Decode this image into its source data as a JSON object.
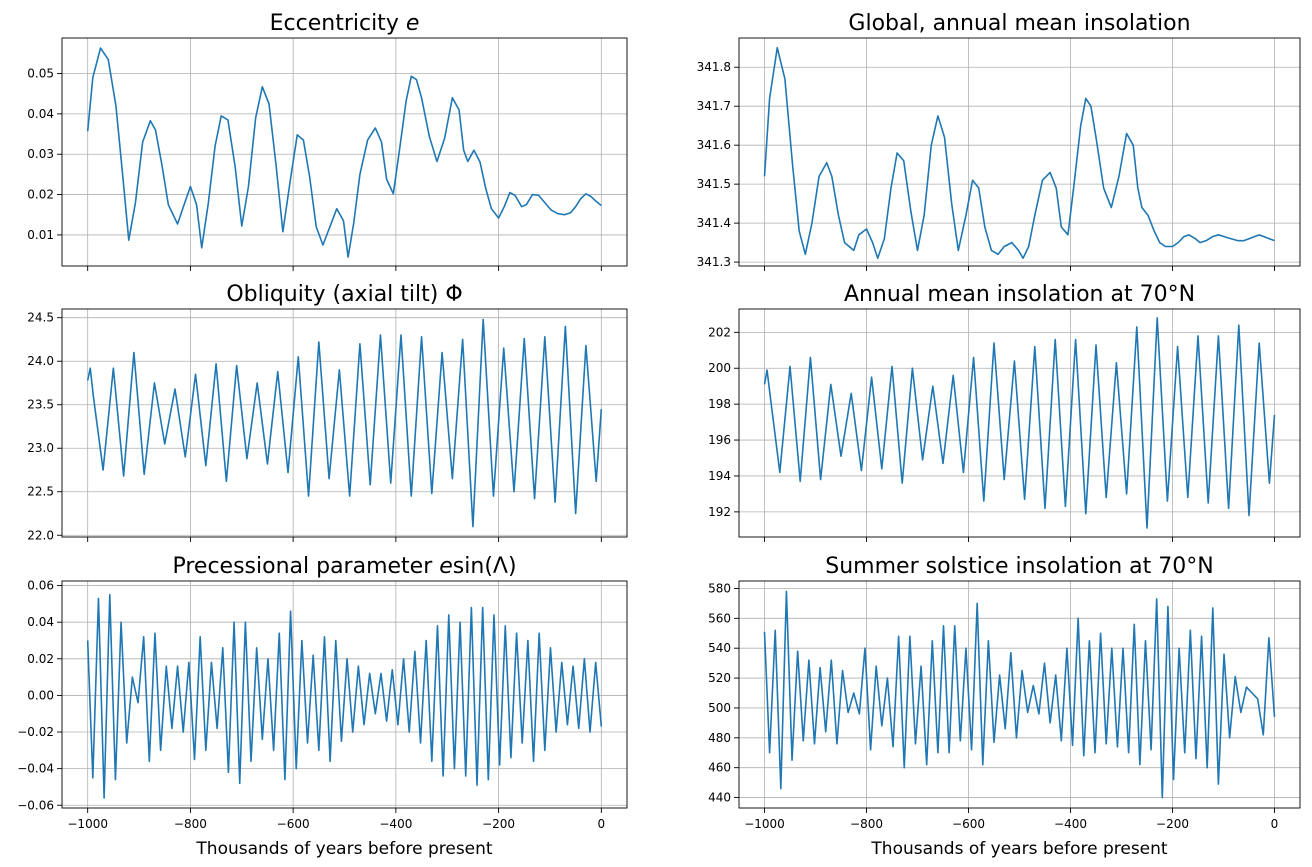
{
  "figure": {
    "background": "#ffffff",
    "line_color": "#1f77b4",
    "grid_color": "#b0b0b0"
  },
  "chart_data": [
    {
      "type": "line",
      "title": "Eccentricity e",
      "title_main": "Eccentricity ",
      "title_var": "e",
      "xlabel": "",
      "ylabel": "",
      "xlim": [
        -1050,
        50
      ],
      "ylim": [
        0.0023,
        0.0588
      ],
      "grid": true,
      "xticks": [
        -1000,
        -800,
        -600,
        -400,
        -200,
        0
      ],
      "yticks": [
        0.01,
        0.02,
        0.03,
        0.04,
        0.05
      ],
      "ytick_labels": [
        "0.01",
        "0.02",
        "0.03",
        "0.04",
        "0.05"
      ],
      "show_xtick_labels": false,
      "x": [
        -1000,
        -990,
        -975,
        -960,
        -945,
        -932,
        -920,
        -907,
        -893,
        -878,
        -868,
        -855,
        -843,
        -825,
        -815,
        -800,
        -788,
        -778,
        -765,
        -752,
        -740,
        -727,
        -713,
        -700,
        -687,
        -673,
        -660,
        -647,
        -633,
        -620,
        -605,
        -592,
        -580,
        -568,
        -555,
        -542,
        -530,
        -515,
        -502,
        -493,
        -482,
        -470,
        -455,
        -440,
        -428,
        -418,
        -405,
        -393,
        -380,
        -370,
        -360,
        -350,
        -335,
        -320,
        -305,
        -290,
        -277,
        -268,
        -260,
        -248,
        -236,
        -225,
        -214,
        -200,
        -189,
        -178,
        -168,
        -155,
        -146,
        -134,
        -122,
        -110,
        -98,
        -85,
        -72,
        -60,
        -50,
        -40,
        -30,
        -20,
        -10,
        0
      ],
      "y": [
        0.0357,
        0.049,
        0.0563,
        0.0535,
        0.042,
        0.025,
        0.0087,
        0.018,
        0.033,
        0.0383,
        0.036,
        0.027,
        0.0175,
        0.0127,
        0.0165,
        0.022,
        0.0175,
        0.0068,
        0.018,
        0.032,
        0.0395,
        0.0385,
        0.027,
        0.0122,
        0.022,
        0.039,
        0.0467,
        0.0425,
        0.027,
        0.0108,
        0.024,
        0.0348,
        0.0335,
        0.0245,
        0.012,
        0.0075,
        0.0115,
        0.0165,
        0.0135,
        0.0045,
        0.013,
        0.025,
        0.0335,
        0.0365,
        0.033,
        0.0238,
        0.0202,
        0.031,
        0.0432,
        0.0493,
        0.0485,
        0.044,
        0.0345,
        0.0282,
        0.034,
        0.044,
        0.041,
        0.031,
        0.0282,
        0.031,
        0.028,
        0.0215,
        0.0165,
        0.0142,
        0.017,
        0.0205,
        0.0198,
        0.017,
        0.0175,
        0.02,
        0.0198,
        0.018,
        0.0162,
        0.0153,
        0.015,
        0.0155,
        0.017,
        0.019,
        0.0202,
        0.0195,
        0.0183,
        0.0173
      ]
    },
    {
      "type": "line",
      "title": "Global, annual mean insolation",
      "xlabel": "",
      "ylabel": "",
      "xlim": [
        -1050,
        50
      ],
      "ylim": [
        341.29,
        341.875
      ],
      "grid": true,
      "xticks": [
        -1000,
        -800,
        -600,
        -400,
        -200,
        0
      ],
      "yticks": [
        341.3,
        341.4,
        341.5,
        341.6,
        341.7,
        341.8
      ],
      "ytick_labels": [
        "341.3",
        "341.4",
        "341.5",
        "341.6",
        "341.7",
        "341.8"
      ],
      "show_xtick_labels": false,
      "x": [
        -1000,
        -990,
        -975,
        -960,
        -945,
        -932,
        -920,
        -907,
        -893,
        -878,
        -868,
        -855,
        -843,
        -825,
        -815,
        -800,
        -788,
        -778,
        -765,
        -752,
        -740,
        -727,
        -713,
        -700,
        -687,
        -673,
        -660,
        -647,
        -633,
        -620,
        -605,
        -592,
        -580,
        -568,
        -555,
        -542,
        -530,
        -515,
        -502,
        -493,
        -482,
        -470,
        -455,
        -440,
        -428,
        -418,
        -405,
        -393,
        -380,
        -370,
        -360,
        -350,
        -335,
        -320,
        -305,
        -290,
        -277,
        -268,
        -260,
        -248,
        -236,
        -225,
        -214,
        -200,
        -189,
        -178,
        -168,
        -155,
        -146,
        -134,
        -122,
        -110,
        -98,
        -85,
        -72,
        -60,
        -50,
        -40,
        -30,
        -20,
        -10,
        0
      ],
      "y": [
        341.52,
        341.72,
        341.85,
        341.77,
        341.55,
        341.38,
        341.32,
        341.4,
        341.52,
        341.555,
        341.52,
        341.42,
        341.35,
        341.33,
        341.37,
        341.385,
        341.35,
        341.31,
        341.36,
        341.49,
        341.58,
        341.56,
        341.43,
        341.33,
        341.42,
        341.6,
        341.675,
        341.62,
        341.45,
        341.33,
        341.42,
        341.51,
        341.49,
        341.39,
        341.33,
        341.32,
        341.34,
        341.35,
        341.33,
        341.31,
        341.34,
        341.42,
        341.51,
        341.53,
        341.49,
        341.39,
        341.37,
        341.5,
        341.65,
        341.72,
        341.7,
        341.62,
        341.49,
        341.44,
        341.52,
        341.63,
        341.6,
        341.49,
        341.44,
        341.42,
        341.38,
        341.35,
        341.34,
        341.34,
        341.35,
        341.365,
        341.37,
        341.36,
        341.35,
        341.355,
        341.365,
        341.37,
        341.365,
        341.36,
        341.355,
        341.355,
        341.36,
        341.365,
        341.37,
        341.365,
        341.36,
        341.355
      ]
    },
    {
      "type": "line",
      "title": "Obliquity (axial tilt) Φ",
      "xlabel": "",
      "ylabel": "",
      "xlim": [
        -1050,
        50
      ],
      "ylim": [
        21.98,
        24.6
      ],
      "grid": true,
      "xticks": [
        -1000,
        -800,
        -600,
        -400,
        -200,
        0
      ],
      "yticks": [
        22.0,
        22.5,
        23.0,
        23.5,
        24.0,
        24.5
      ],
      "ytick_labels": [
        "22.0",
        "22.5",
        "23.0",
        "23.5",
        "24.0",
        "24.5"
      ],
      "show_xtick_labels": false,
      "x": [
        -1000,
        -995,
        -989,
        -970,
        -950,
        -930,
        -910,
        -890,
        -870,
        -850,
        -830,
        -810,
        -790,
        -770,
        -750,
        -730,
        -710,
        -690,
        -670,
        -650,
        -630,
        -610,
        -590,
        -570,
        -550,
        -530,
        -510,
        -490,
        -470,
        -450,
        -430,
        -410,
        -390,
        -370,
        -350,
        -330,
        -310,
        -290,
        -270,
        -250,
        -230,
        -210,
        -190,
        -170,
        -150,
        -130,
        -110,
        -90,
        -70,
        -50,
        -30,
        -10,
        0
      ],
      "y": [
        23.78,
        23.92,
        23.6,
        22.75,
        23.92,
        22.68,
        24.1,
        22.7,
        23.75,
        23.05,
        23.68,
        22.9,
        23.85,
        22.8,
        23.97,
        22.62,
        23.95,
        22.88,
        23.75,
        22.82,
        23.88,
        22.72,
        24.05,
        22.45,
        24.22,
        22.65,
        23.9,
        22.45,
        24.2,
        22.58,
        24.3,
        22.6,
        24.3,
        22.45,
        24.28,
        22.48,
        24.1,
        22.65,
        24.25,
        22.1,
        24.48,
        22.45,
        24.15,
        22.5,
        24.26,
        22.42,
        24.28,
        22.38,
        24.4,
        22.25,
        24.18,
        22.62,
        23.45
      ]
    },
    {
      "type": "line",
      "title": "Annual mean insolation at 70°N",
      "xlabel": "",
      "ylabel": "",
      "xlim": [
        -1050,
        50
      ],
      "ylim": [
        190.6,
        203.3
      ],
      "grid": true,
      "xticks": [
        -1000,
        -800,
        -600,
        -400,
        -200,
        0
      ],
      "yticks": [
        192,
        194,
        196,
        198,
        200,
        202
      ],
      "ytick_labels": [
        "192",
        "194",
        "196",
        "198",
        "200",
        "202"
      ],
      "show_xtick_labels": false,
      "x": [
        -1000,
        -995,
        -989,
        -970,
        -950,
        -930,
        -910,
        -890,
        -870,
        -850,
        -830,
        -810,
        -790,
        -770,
        -750,
        -730,
        -710,
        -690,
        -670,
        -650,
        -630,
        -610,
        -590,
        -570,
        -550,
        -530,
        -510,
        -490,
        -470,
        -450,
        -430,
        -410,
        -390,
        -370,
        -350,
        -330,
        -310,
        -290,
        -270,
        -250,
        -230,
        -210,
        -190,
        -170,
        -150,
        -130,
        -110,
        -90,
        -70,
        -50,
        -30,
        -10,
        0
      ],
      "y": [
        199.1,
        199.9,
        198.5,
        194.2,
        200.1,
        193.7,
        200.6,
        193.8,
        199.1,
        195.1,
        198.6,
        194.3,
        199.5,
        194.4,
        200.1,
        193.6,
        200.0,
        194.9,
        199.0,
        194.7,
        199.6,
        194.2,
        200.6,
        192.6,
        201.4,
        193.8,
        200.4,
        192.7,
        201.2,
        192.2,
        201.6,
        192.3,
        201.6,
        191.9,
        201.3,
        192.8,
        200.3,
        193.0,
        202.3,
        191.1,
        202.8,
        192.6,
        201.2,
        192.8,
        201.8,
        192.5,
        201.8,
        192.2,
        202.4,
        191.8,
        201.4,
        193.6,
        197.4
      ]
    },
    {
      "type": "line",
      "title": "Precessional parameter esin(Λ)",
      "title_var": "e",
      "title_main": "sin(Λ)",
      "xlabel": "Thousands of years before present",
      "ylabel": "",
      "xlim": [
        -1050,
        50
      ],
      "ylim": [
        -0.0615,
        0.0625
      ],
      "grid": true,
      "xticks": [
        -1000,
        -800,
        -600,
        -400,
        -200,
        0
      ],
      "xtick_labels": [
        "−1000",
        "−800",
        "−600",
        "−400",
        "−200",
        "0"
      ],
      "yticks": [
        -0.06,
        -0.04,
        -0.02,
        0.0,
        0.02,
        0.04,
        0.06
      ],
      "ytick_labels": [
        "−0.06",
        "−0.04",
        "−0.02",
        "0.00",
        "0.02",
        "0.04",
        "0.06"
      ],
      "show_xtick_labels": true,
      "x": [
        -1000,
        -990,
        -979,
        -968,
        -957,
        -946,
        -935,
        -924,
        -913,
        -902,
        -891,
        -880,
        -869,
        -858,
        -847,
        -836,
        -825,
        -814,
        -803,
        -792,
        -781,
        -770,
        -759,
        -748,
        -737,
        -726,
        -715,
        -704,
        -693,
        -682,
        -671,
        -660,
        -649,
        -638,
        -627,
        -616,
        -605,
        -594,
        -583,
        -572,
        -561,
        -550,
        -539,
        -528,
        -517,
        -506,
        -495,
        -484,
        -473,
        -462,
        -451,
        -440,
        -429,
        -418,
        -407,
        -396,
        -385,
        -374,
        -363,
        -352,
        -341,
        -330,
        -319,
        -308,
        -297,
        -286,
        -275,
        -264,
        -253,
        -242,
        -231,
        -220,
        -209,
        -198,
        -187,
        -176,
        -165,
        -154,
        -143,
        -132,
        -121,
        -110,
        -99,
        -88,
        -77,
        -66,
        -55,
        -44,
        -33,
        -22,
        -11,
        0
      ],
      "y": [
        0.03,
        -0.045,
        0.053,
        -0.056,
        0.055,
        -0.046,
        0.04,
        -0.026,
        0.01,
        -0.004,
        0.032,
        -0.036,
        0.034,
        -0.03,
        0.016,
        -0.018,
        0.016,
        -0.02,
        0.018,
        -0.035,
        0.032,
        -0.03,
        0.018,
        -0.018,
        0.026,
        -0.042,
        0.04,
        -0.048,
        0.04,
        -0.036,
        0.026,
        -0.024,
        0.02,
        -0.03,
        0.034,
        -0.046,
        0.046,
        -0.04,
        0.03,
        -0.026,
        0.022,
        -0.03,
        0.032,
        -0.036,
        0.03,
        -0.025,
        0.02,
        -0.02,
        0.016,
        -0.016,
        0.012,
        -0.01,
        0.012,
        -0.014,
        0.014,
        -0.016,
        0.02,
        -0.02,
        0.024,
        -0.026,
        0.03,
        -0.036,
        0.038,
        -0.044,
        0.044,
        -0.04,
        0.04,
        -0.044,
        0.048,
        -0.049,
        0.048,
        -0.046,
        0.044,
        -0.038,
        0.038,
        -0.034,
        0.034,
        -0.026,
        0.03,
        -0.036,
        0.034,
        -0.03,
        0.026,
        -0.02,
        0.018,
        -0.016,
        0.016,
        -0.018,
        0.02,
        -0.02,
        0.018,
        -0.017
      ]
    },
    {
      "type": "line",
      "title": "Summer solstice insolation at 70°N",
      "xlabel": "Thousands of years before present",
      "ylabel": "",
      "xlim": [
        -1050,
        50
      ],
      "ylim": [
        433,
        585
      ],
      "grid": true,
      "xticks": [
        -1000,
        -800,
        -600,
        -400,
        -200,
        0
      ],
      "xtick_labels": [
        "−1000",
        "−800",
        "−600",
        "−400",
        "−200",
        "0"
      ],
      "yticks": [
        440,
        460,
        480,
        500,
        520,
        540,
        560,
        580
      ],
      "ytick_labels": [
        "440",
        "460",
        "480",
        "500",
        "520",
        "540",
        "560",
        "580"
      ],
      "show_xtick_labels": true,
      "x": [
        -1000,
        -990,
        -979,
        -968,
        -957,
        -946,
        -935,
        -924,
        -913,
        -902,
        -891,
        -880,
        -869,
        -858,
        -847,
        -836,
        -825,
        -814,
        -803,
        -792,
        -781,
        -770,
        -759,
        -748,
        -737,
        -726,
        -715,
        -704,
        -693,
        -682,
        -671,
        -660,
        -649,
        -638,
        -627,
        -616,
        -605,
        -594,
        -583,
        -572,
        -561,
        -550,
        -539,
        -528,
        -517,
        -506,
        -495,
        -484,
        -473,
        -462,
        -451,
        -440,
        -429,
        -418,
        -407,
        -396,
        -385,
        -374,
        -363,
        -352,
        -341,
        -330,
        -319,
        -308,
        -297,
        -286,
        -275,
        -264,
        -253,
        -242,
        -231,
        -220,
        -209,
        -198,
        -187,
        -176,
        -165,
        -154,
        -143,
        -132,
        -121,
        -110,
        -99,
        -88,
        -77,
        -66,
        -55,
        -44,
        -33,
        -22,
        -11,
        0
      ],
      "y": [
        551,
        470,
        552,
        446,
        578,
        465,
        538,
        478,
        532,
        476,
        527,
        484,
        532,
        476,
        525,
        497,
        510,
        496,
        540,
        472,
        528,
        488,
        520,
        474,
        548,
        460,
        548,
        476,
        528,
        462,
        545,
        470,
        555,
        470,
        555,
        478,
        540,
        472,
        570,
        462,
        545,
        477,
        522,
        486,
        537,
        480,
        525,
        497,
        515,
        496,
        530,
        490,
        522,
        478,
        540,
        475,
        560,
        468,
        545,
        470,
        550,
        476,
        540,
        474,
        540,
        470,
        556,
        462,
        545,
        472,
        573,
        440,
        568,
        452,
        540,
        470,
        552,
        466,
        548,
        460,
        567,
        449,
        536,
        480,
        521,
        497,
        514,
        510,
        506,
        482,
        547,
        494
      ]
    }
  ]
}
